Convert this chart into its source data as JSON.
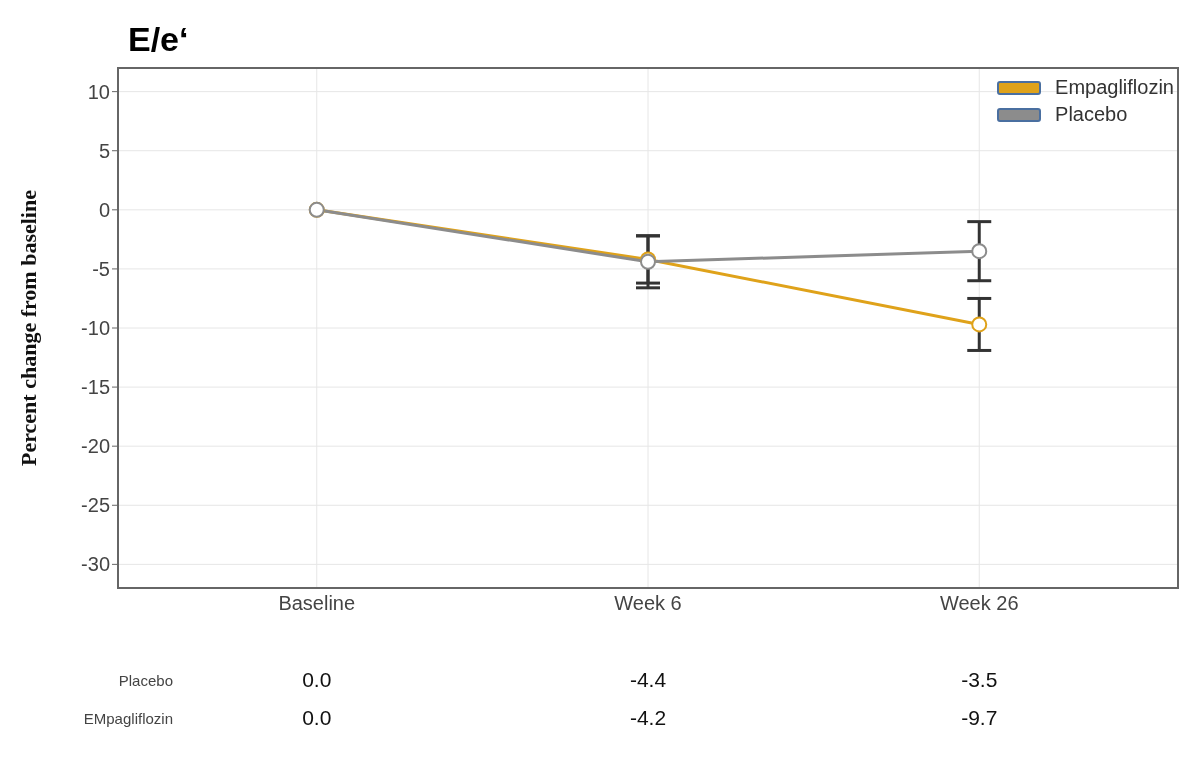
{
  "chart_data": {
    "type": "line",
    "title": "E/e‘",
    "ylabel": "Percent change from baseline",
    "categories": [
      "Baseline",
      "Week 6",
      "Week 26"
    ],
    "series": [
      {
        "name": "Empagliflozin",
        "color": "#dfa21a",
        "values": [
          0,
          -4.2,
          -9.7
        ],
        "errors": [
          null,
          2.0,
          2.2
        ],
        "value_labels": [
          "0.0",
          "-4.2",
          "-9.7"
        ]
      },
      {
        "name": "Placebo",
        "color": "#8c8c8c",
        "values": [
          0,
          -4.4,
          -3.5
        ],
        "errors": [
          null,
          2.2,
          2.5
        ],
        "value_labels": [
          "0.0",
          "-4.4",
          "-3.5"
        ]
      }
    ],
    "annotations": [
      "Placebo",
      "EMpagliflozin"
    ],
    "ylim": [
      -32,
      12
    ],
    "yticks": [
      -30,
      -25,
      -20,
      -15,
      -10,
      -5,
      0,
      5,
      10
    ],
    "grid": true,
    "legend": "top right",
    "marker": "circle",
    "line_style": "solid"
  }
}
